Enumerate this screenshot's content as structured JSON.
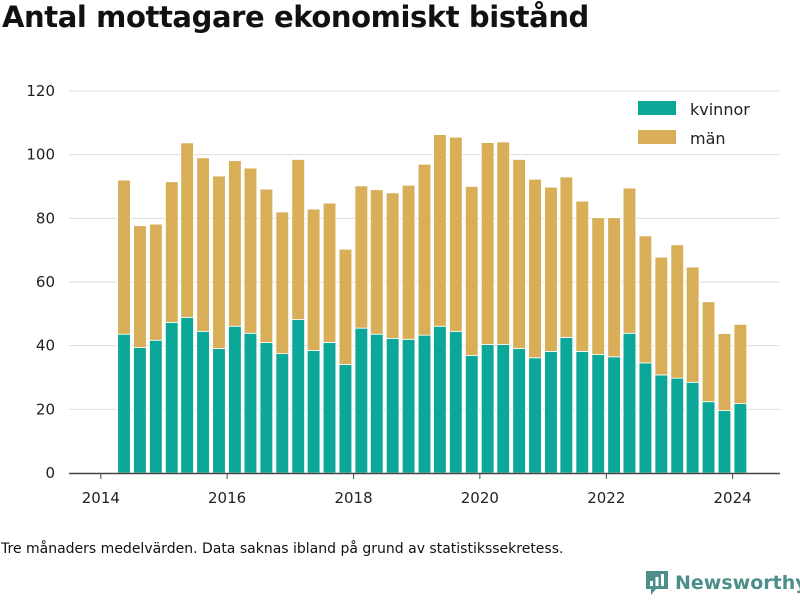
{
  "title": "Antal mottagare ekonomiskt bistånd",
  "footnote": "Tre månaders medelvärden. Data saknas ibland på grund av statistikssekretess.",
  "brand": {
    "name": "Newsworthy",
    "icon": "newsworthy-logo-icon"
  },
  "colors": {
    "kvinnor": "#0ba89a",
    "man": "#d8ae59",
    "grid": "#dddddd",
    "axis": "#444444"
  },
  "chart_data": {
    "type": "bar",
    "stacked": true,
    "title": "Antal mottagare ekonomiskt bistånd",
    "xlabel": "",
    "ylabel": "",
    "ylim": [
      0,
      120
    ],
    "yticks": [
      0,
      20,
      40,
      60,
      80,
      100,
      120
    ],
    "xlim": [
      "2013-07-01",
      "2024-10-01"
    ],
    "xticks": [
      {
        "label": "2014",
        "date": "2014-01-01"
      },
      {
        "label": "2016",
        "date": "2016-01-01"
      },
      {
        "label": "2018",
        "date": "2018-01-01"
      },
      {
        "label": "2020",
        "date": "2020-01-01"
      },
      {
        "label": "2022",
        "date": "2022-01-01"
      },
      {
        "label": "2024",
        "date": "2024-01-01"
      }
    ],
    "grid": true,
    "legend_position": "top-right",
    "x": [
      "2014-05",
      "2014-08",
      "2014-11",
      "2015-02",
      "2015-05",
      "2015-08",
      "2015-11",
      "2016-02",
      "2016-05",
      "2016-08",
      "2016-11",
      "2017-02",
      "2017-05",
      "2017-08",
      "2017-11",
      "2018-02",
      "2018-05",
      "2018-08",
      "2018-11",
      "2019-02",
      "2019-05",
      "2019-08",
      "2019-11",
      "2020-02",
      "2020-05",
      "2020-08",
      "2020-11",
      "2021-02",
      "2021-05",
      "2021-08",
      "2021-11",
      "2022-02",
      "2022-05",
      "2022-08",
      "2022-11",
      "2023-02",
      "2023-05",
      "2023-08",
      "2023-11",
      "2024-02"
    ],
    "series": [
      {
        "name": "kvinnor",
        "values": [
          43.6,
          39.4,
          41.7,
          47.3,
          48.9,
          44.5,
          39.1,
          46.1,
          43.9,
          41.0,
          37.5,
          48.2,
          38.5,
          41.0,
          34.1,
          45.5,
          43.6,
          42.3,
          42.0,
          43.3,
          46.1,
          44.5,
          36.9,
          40.4,
          40.4,
          39.1,
          36.2,
          38.2,
          42.6,
          38.2,
          37.2,
          36.5,
          43.9,
          34.6,
          30.8,
          29.8,
          28.5,
          22.4,
          19.6,
          21.8
        ]
      },
      {
        "name": "män",
        "values": [
          48.4,
          38.3,
          36.5,
          44.2,
          54.8,
          54.5,
          54.2,
          52.0,
          51.9,
          48.2,
          44.5,
          50.3,
          44.4,
          43.8,
          36.2,
          44.7,
          45.4,
          45.7,
          48.4,
          53.7,
          60.2,
          61.0,
          53.1,
          63.4,
          63.6,
          59.4,
          56.1,
          51.6,
          50.4,
          47.2,
          43.0,
          43.7,
          45.6,
          39.9,
          37.0,
          41.9,
          36.2,
          31.4,
          24.2,
          24.9
        ]
      }
    ]
  }
}
